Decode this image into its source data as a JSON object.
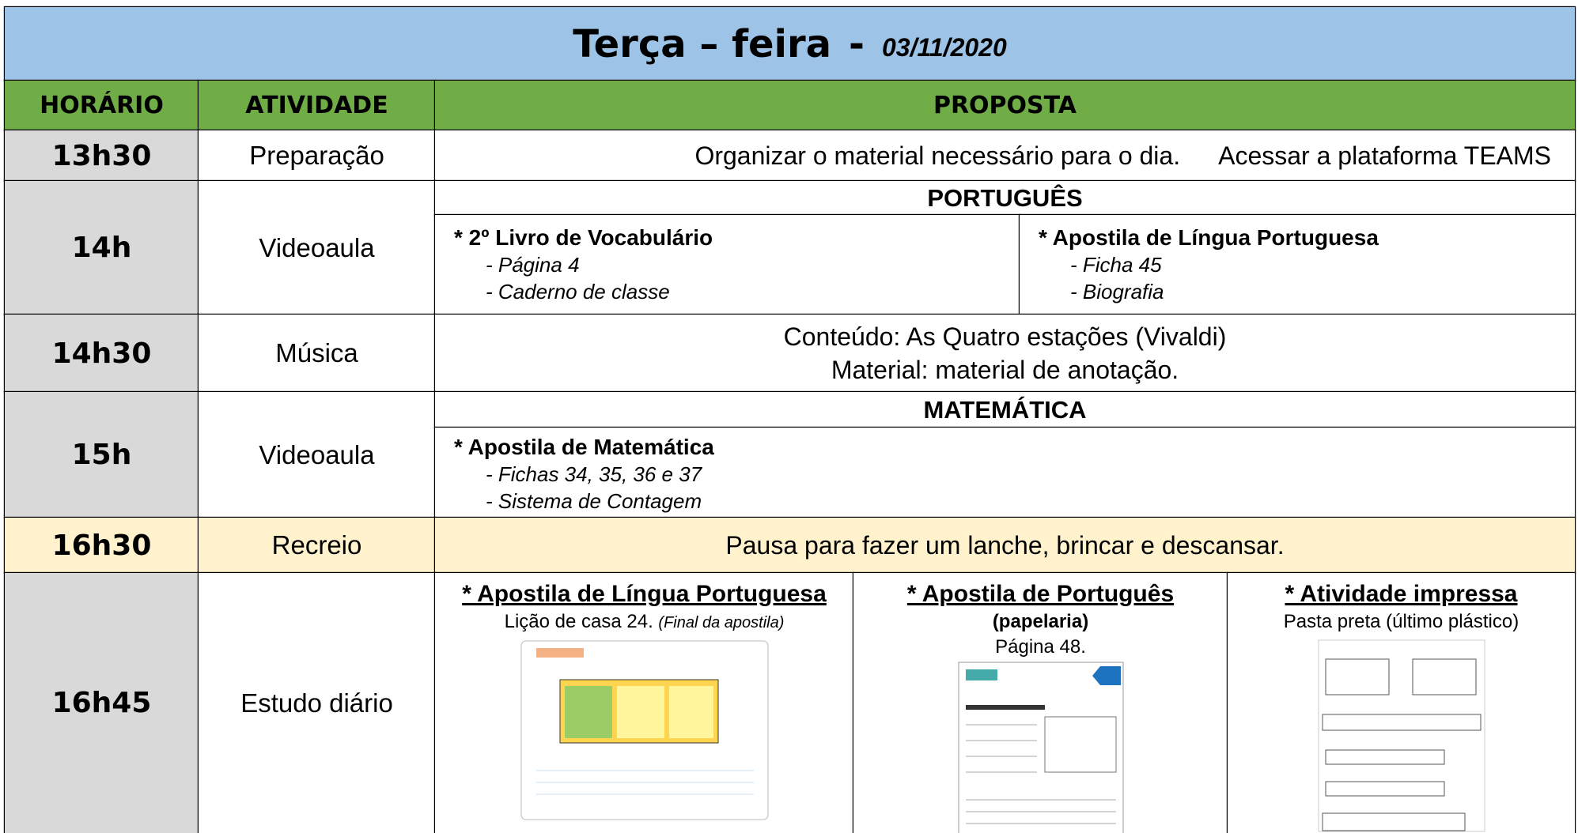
{
  "header": {
    "day": "Terça – feira",
    "separator": "-",
    "date": "03/11/2020"
  },
  "columns": [
    "HORÁRIO",
    "ATIVIDADE",
    "PROPOSTA"
  ],
  "rows": [
    {
      "time": "13h30",
      "activity": "Preparação",
      "proposal": [
        "Organizar o material necessário para o dia.",
        "Acessar a plataforma TEAMS"
      ]
    },
    {
      "time": "14h",
      "activity": "Videoaula",
      "subject": "PORTUGUÊS",
      "items": [
        {
          "title": "* 2º Livro de Vocabulário",
          "lines": [
            "- Página 4",
            "- Caderno de classe"
          ]
        },
        {
          "title": "* Apostila de Língua Portuguesa",
          "lines": [
            "- Ficha 45",
            "- Biografia"
          ]
        }
      ]
    },
    {
      "time": "14h30",
      "activity": "Música",
      "proposal": [
        "Conteúdo: As Quatro estações (Vivaldi)",
        "Material: material de anotação."
      ]
    },
    {
      "time": "15h",
      "activity": "Videoaula",
      "subject": "MATEMÁTICA",
      "items": [
        {
          "title": "* Apostila de Matemática",
          "lines": [
            "- Fichas 34, 35, 36 e 37",
            "- Sistema de Contagem"
          ]
        }
      ]
    },
    {
      "time": "16h30",
      "activity": "Recreio",
      "proposal": [
        "Pausa para fazer um lanche, brincar e descansar."
      ]
    },
    {
      "time": "16h45",
      "activity": "Estudo diário",
      "items": [
        {
          "title": "* Apostila de Língua Portuguesa",
          "line": "Lição de casa 24.",
          "note": "(Final da apostila)"
        },
        {
          "title": "* Apostila de Português",
          "subtitle": "(papelaria)",
          "line": "Página 48."
        },
        {
          "title": "* Atividade impressa",
          "line": "Pasta preta (último plástico)"
        }
      ]
    }
  ]
}
